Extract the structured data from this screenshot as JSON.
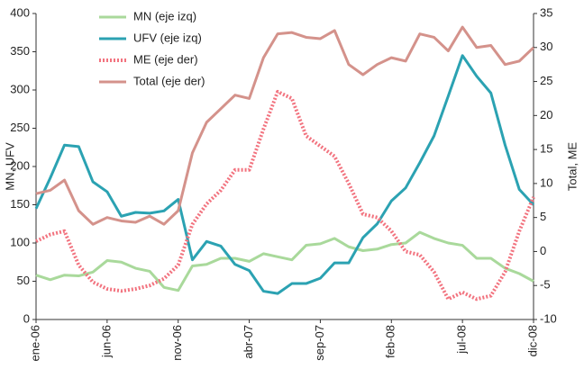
{
  "chart_data": {
    "type": "line",
    "y_label": "MN, UFV",
    "y2_label": "Total, ME",
    "categories": [
      "ene-06",
      null,
      null,
      null,
      null,
      "jun-06",
      null,
      null,
      null,
      null,
      "nov-06",
      null,
      null,
      null,
      null,
      "abr-07",
      null,
      null,
      null,
      null,
      "sep-07",
      null,
      null,
      null,
      null,
      "feb-08",
      null,
      null,
      null,
      null,
      "jul-08",
      null,
      null,
      null,
      null,
      "dic-08"
    ],
    "ylim": [
      0,
      400
    ],
    "yticks": [
      0,
      50,
      100,
      150,
      200,
      250,
      300,
      350,
      400
    ],
    "y2lim": [
      -10,
      35
    ],
    "y2ticks": [
      -10,
      -5,
      0,
      5,
      10,
      15,
      20,
      25,
      30,
      35
    ],
    "legend": "upper left",
    "series": [
      {
        "name": "MN (eje izq)",
        "color": "#a9d99b",
        "style": "solid",
        "values": [
          58,
          52,
          58,
          57,
          62,
          77,
          75,
          67,
          63,
          42,
          38,
          70,
          72,
          80,
          80,
          76,
          86,
          82,
          78,
          97,
          99,
          106,
          95,
          90,
          92,
          98,
          100,
          114,
          106,
          100,
          97,
          80,
          80,
          67,
          60,
          50
        ]
      },
      {
        "name": "UFV (eje izq)",
        "color": "#2ba2b2",
        "style": "solid",
        "values": [
          145,
          185,
          228,
          226,
          180,
          167,
          135,
          140,
          139,
          142,
          157,
          78,
          102,
          96,
          72,
          64,
          37,
          34,
          47,
          47,
          54,
          74,
          74,
          107,
          125,
          155,
          172,
          205,
          240,
          292,
          345,
          318,
          296,
          228,
          170,
          150
        ]
      },
      {
        "name": "ME (eje der)",
        "color": "#f2737f",
        "style": "dotted",
        "axis": "y2",
        "values": [
          1.5,
          2.5,
          3,
          -2,
          -4.5,
          -5.5,
          -5.8,
          -5.5,
          -5,
          -4,
          -2,
          4,
          7,
          9,
          12,
          12,
          18,
          23.5,
          22.5,
          17,
          15.5,
          14,
          10,
          5.5,
          5,
          3,
          0,
          -0.5,
          -3,
          -7,
          -6,
          -7,
          -6.5,
          -3,
          3,
          8
        ]
      },
      {
        "name": "Total (eje der)",
        "color": "#d4928b",
        "style": "solid",
        "axis": "y2",
        "values": [
          8.5,
          9,
          10.5,
          6,
          4,
          5,
          4.5,
          4.3,
          5.2,
          4,
          6,
          14.5,
          19,
          21,
          23,
          22.5,
          28.5,
          32,
          32.2,
          31.5,
          31.3,
          32.5,
          27.5,
          26,
          27.5,
          28.5,
          28,
          32,
          31.5,
          29.5,
          33,
          30,
          30.3,
          27.5,
          28,
          30
        ]
      }
    ]
  }
}
